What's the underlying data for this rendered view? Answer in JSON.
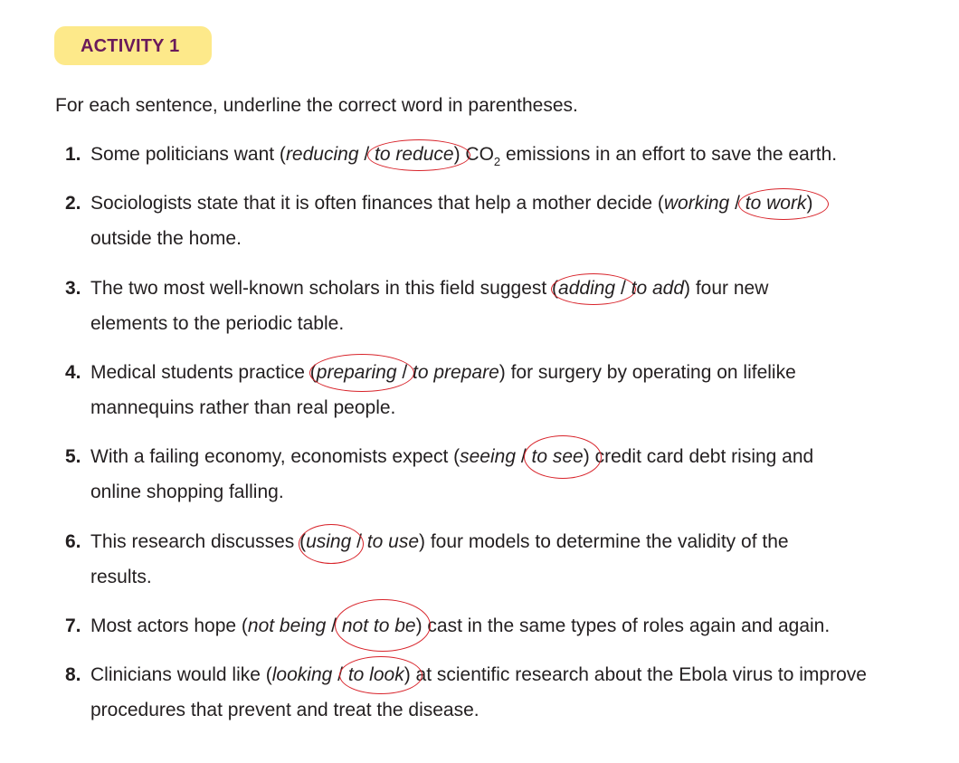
{
  "header": {
    "badge": "ACTIVITY 1"
  },
  "instructions": "For each sentence, underline the correct word in parentheses.",
  "items": [
    {
      "number": "1.",
      "before": "Some politicians want (",
      "opt1": "reducing",
      "sep": " / ",
      "opt2": "to reduce",
      "after_a": ") CO",
      "sub": "2",
      "after_b": " emissions in an effort to save the earth.",
      "answer": "to reduce"
    },
    {
      "number": "2.",
      "before": "Sociologists state that it is often finances that help a mother decide (",
      "opt1": "working",
      "sep": " / ",
      "opt2": "to work",
      "after": ")",
      "line2": "outside the home.",
      "answer": "to work"
    },
    {
      "number": "3.",
      "before": "The two most well-known scholars in this field suggest (",
      "opt1": "adding",
      "sep": " / ",
      "opt2": "to add",
      "after": ") four new",
      "line2": "elements to the periodic table.",
      "answer": "adding"
    },
    {
      "number": "4.",
      "before": "Medical students practice (",
      "opt1": "preparing",
      "sep": " / ",
      "opt2": "to prepare",
      "after": ") for surgery by operating on lifelike",
      "line2": "mannequins rather than real people.",
      "answer": "preparing"
    },
    {
      "number": "5.",
      "before": "With a failing economy, economists expect (",
      "opt1": "seeing",
      "sep": " / ",
      "opt2": "to see",
      "after": ") credit card debt rising and",
      "line2": "online shopping falling.",
      "answer": "to see"
    },
    {
      "number": "6.",
      "before": "This research discusses (",
      "opt1": "using",
      "sep": " / ",
      "opt2": "to use",
      "after": ") four models to determine the validity of the",
      "line2": "results.",
      "answer": "using"
    },
    {
      "number": "7.",
      "before": "Most actors hope (",
      "opt1": "not being",
      "sep": " / ",
      "opt2": "not to be",
      "after": ") cast in the same types of roles again and again.",
      "answer": "not to be"
    },
    {
      "number": "8.",
      "before": "Clinicians would like (",
      "opt1": "looking",
      "sep": " / ",
      "opt2": "to look",
      "after": ") at scientific research about the Ebola virus to improve",
      "line2": "procedures that prevent and treat the disease.",
      "answer": "to look"
    }
  ],
  "colors": {
    "badge_bg": "#fde98a",
    "badge_text": "#6a1a5a",
    "circle": "#d8232a",
    "text": "#231f20"
  }
}
